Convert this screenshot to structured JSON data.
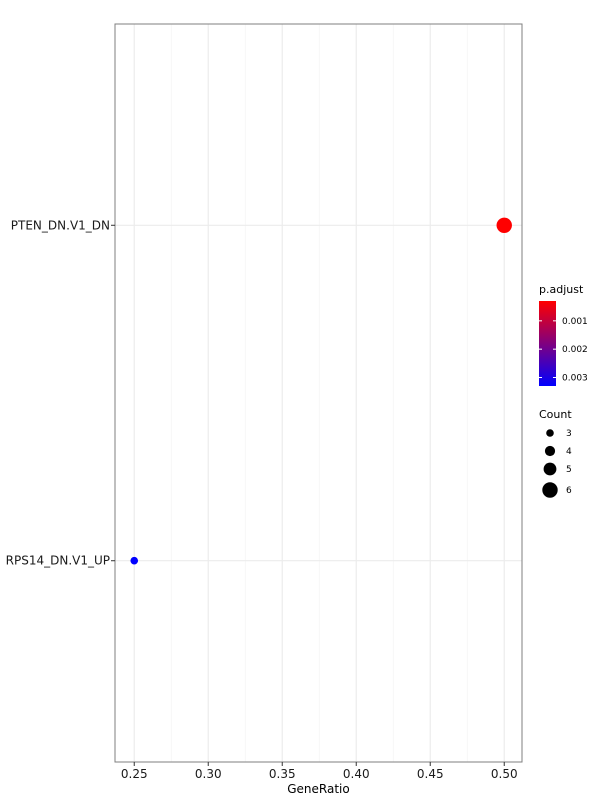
{
  "chart_data": {
    "type": "scatter",
    "title": "",
    "xlabel": "GeneRatio",
    "ylabel": "",
    "xlim": [
      0.237,
      0.512
    ],
    "x_ticks": [
      0.25,
      0.3,
      0.35,
      0.4,
      0.45,
      0.5
    ],
    "x_tick_labels": [
      "0.25",
      "0.30",
      "0.35",
      "0.40",
      "0.45",
      "0.50"
    ],
    "categories": [
      "RPS14_DN.V1_UP",
      "PTEN_DN.V1_DN"
    ],
    "points": [
      {
        "category": "PTEN_DN.V1_DN",
        "x": 0.5,
        "count": 6,
        "p_adjust": 0.0003
      },
      {
        "category": "RPS14_DN.V1_UP",
        "x": 0.25,
        "count": 3,
        "p_adjust": 0.0033
      }
    ],
    "grid": true,
    "legend_position": "right",
    "color_legend": {
      "title": "p.adjust",
      "range": [
        0.0003,
        0.0033
      ],
      "ticks": [
        0.001,
        0.002,
        0.003
      ],
      "tick_labels": [
        "0.001",
        "0.002",
        "0.003"
      ],
      "low_color": "#ff0000",
      "high_color": "#0000ff"
    },
    "size_legend": {
      "title": "Count",
      "values": [
        3,
        4,
        5,
        6
      ],
      "labels": [
        "3",
        "4",
        "5",
        "6"
      ]
    }
  }
}
